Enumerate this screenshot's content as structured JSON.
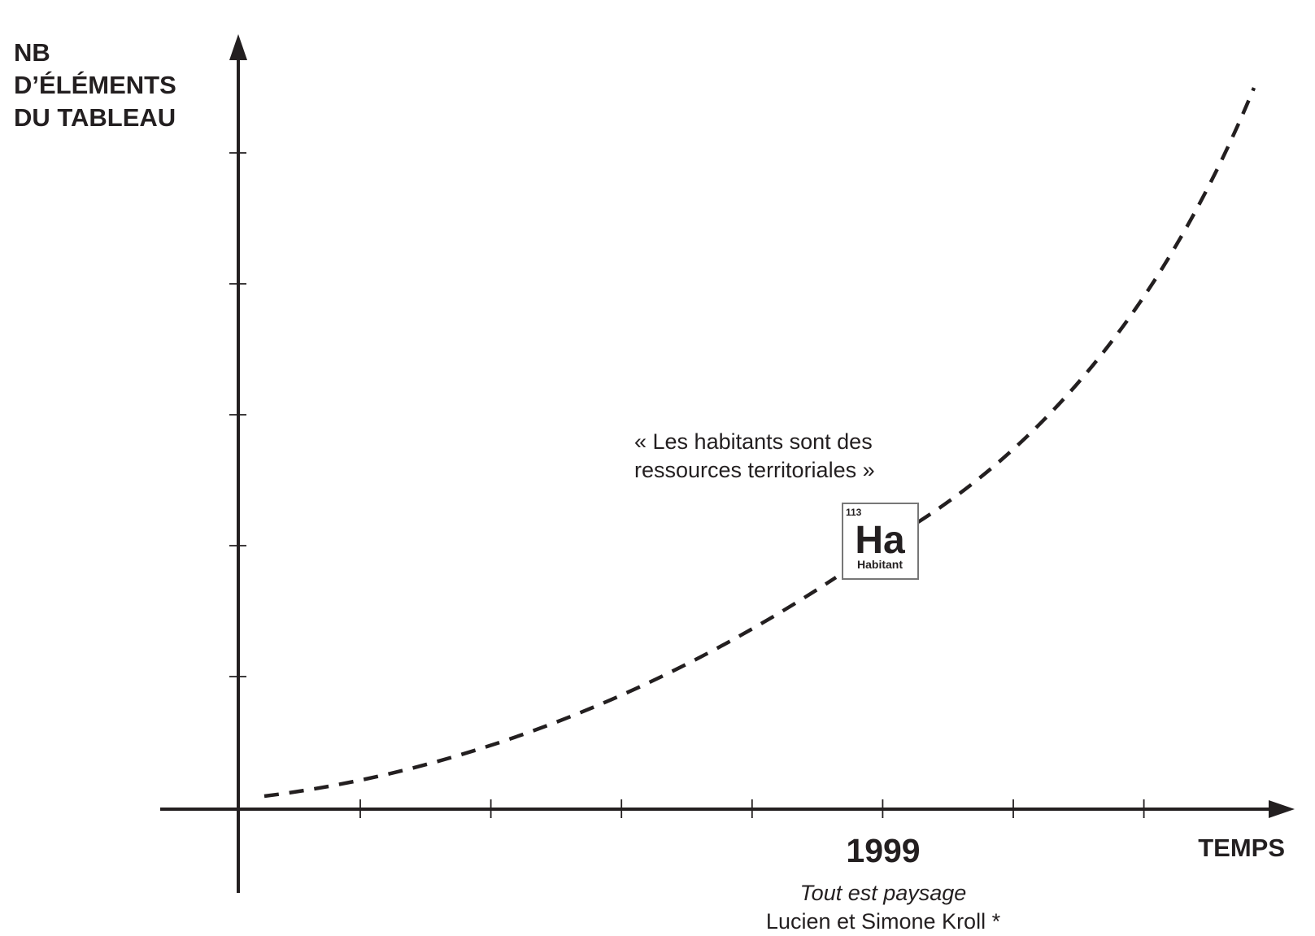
{
  "chart_data": {
    "type": "line",
    "title": "",
    "xlabel": "TEMPS",
    "ylabel_lines": [
      "NB",
      "D’ÉLÉMENTS",
      "DU TABLEAU"
    ],
    "grid": false,
    "x_ticks_count": 7,
    "y_ticks_count": 5,
    "series": [
      {
        "style": "dashed",
        "shape": "exponential"
      }
    ],
    "annotations": {
      "year": "1999",
      "quote_lines": [
        "« Les habitants sont des",
        "ressources territoriales »"
      ],
      "source_title": "Tout est paysage",
      "source_author": "Lucien et Simone Kroll *",
      "element": {
        "number": "113",
        "symbol": "Ha",
        "name": "Habitant"
      }
    }
  },
  "colors": {
    "ink": "#231f20",
    "background": "#ffffff",
    "element_border": "#777777"
  }
}
